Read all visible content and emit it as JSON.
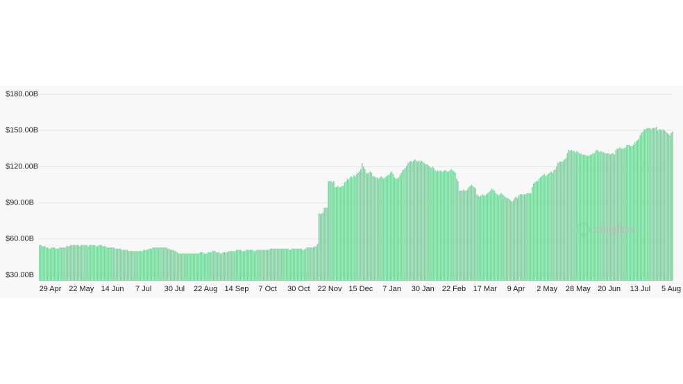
{
  "chart_data": {
    "type": "bar",
    "watermark": "coinglass",
    "color": "#7dd9a1",
    "grid": true,
    "ylim": [
      25.4,
      186.3
    ],
    "yticks": [
      {
        "value": 30,
        "label": "$30.00B"
      },
      {
        "value": 60,
        "label": "$60.00B"
      },
      {
        "value": 90,
        "label": "$90.00B"
      },
      {
        "value": 120,
        "label": "$120.00B"
      },
      {
        "value": 150,
        "label": "$150.00B"
      },
      {
        "value": 180,
        "label": "$180.00B"
      }
    ],
    "categories": [
      null,
      null,
      null,
      null,
      null,
      null,
      null,
      null,
      "29 Apr",
      null,
      null,
      null,
      null,
      null,
      null,
      null,
      null,
      null,
      null,
      null,
      null,
      null,
      null,
      null,
      null,
      null,
      null,
      null,
      null,
      null,
      null,
      "22 May",
      null,
      null,
      null,
      null,
      null,
      null,
      null,
      null,
      null,
      null,
      null,
      null,
      null,
      null,
      null,
      null,
      null,
      null,
      null,
      null,
      null,
      null,
      "14 Jun",
      null,
      null,
      null,
      null,
      null,
      null,
      null,
      null,
      null,
      null,
      null,
      null,
      null,
      null,
      null,
      null,
      null,
      null,
      null,
      null,
      null,
      null,
      "7 Jul",
      null,
      null,
      null,
      null,
      null,
      null,
      null,
      null,
      null,
      null,
      null,
      null,
      null,
      null,
      null,
      null,
      null,
      null,
      null,
      null,
      null,
      null,
      "30 Jul",
      null,
      null,
      null,
      null,
      null,
      null,
      null,
      null,
      null,
      null,
      null,
      null,
      null,
      null,
      null,
      null,
      null,
      null,
      null,
      null,
      null,
      null,
      "22 Aug",
      null,
      null,
      null,
      null,
      null,
      null,
      null,
      null,
      null,
      null,
      null,
      null,
      null,
      null,
      null,
      null,
      null,
      null,
      null,
      null,
      null,
      null,
      "14 Sep",
      null,
      null,
      null,
      null,
      null,
      null,
      null,
      null,
      null,
      null,
      null,
      null,
      null,
      null,
      null,
      null,
      null,
      null,
      null,
      null,
      null,
      null,
      "7 Oct",
      null,
      null,
      null,
      null,
      null,
      null,
      null,
      null,
      null,
      null,
      null,
      null,
      null,
      null,
      null,
      null,
      null,
      null,
      null,
      null,
      null,
      null,
      "30 Oct",
      null,
      null,
      null,
      null,
      null,
      null,
      null,
      null,
      null,
      null,
      null,
      null,
      null,
      null,
      null,
      null,
      null,
      null,
      null,
      null,
      null,
      null,
      "22 Nov",
      null,
      null,
      null,
      null,
      null,
      null,
      null,
      null,
      null,
      null,
      null,
      null,
      null,
      null,
      null,
      null,
      null,
      null,
      null,
      null,
      null,
      null,
      "15 Dec",
      null,
      null,
      null,
      null,
      null,
      null,
      null,
      null,
      null,
      null,
      null,
      null,
      null,
      null,
      null,
      null,
      null,
      null,
      null,
      null,
      null,
      null,
      "7 Jan",
      null,
      null,
      null,
      null,
      null,
      null,
      null,
      null,
      null,
      null,
      null,
      null,
      null,
      null,
      null,
      null,
      null,
      null,
      null,
      null,
      null,
      null,
      "30 Jan",
      null,
      null,
      null,
      null,
      null,
      null,
      null,
      null,
      null,
      null,
      null,
      null,
      null,
      null,
      null,
      null,
      null,
      null,
      null,
      null,
      null,
      null,
      "22 Feb",
      null,
      null,
      null,
      null,
      null,
      null,
      null,
      null,
      null,
      null,
      null,
      null,
      null,
      null,
      null,
      null,
      null,
      null,
      null,
      null,
      null,
      null,
      "17 Mar",
      null,
      null,
      null,
      null,
      null,
      null,
      null,
      null,
      null,
      null,
      null,
      null,
      null,
      null,
      null,
      null,
      null,
      null,
      null,
      null,
      null,
      null,
      "9 Apr",
      null,
      null,
      null,
      null,
      null,
      null,
      null,
      null,
      null,
      null,
      null,
      null,
      null,
      null,
      null,
      null,
      null,
      null,
      null,
      null,
      null,
      null,
      "2 May",
      null,
      null,
      null,
      null,
      null,
      null,
      null,
      null,
      null,
      null,
      null,
      null,
      null,
      null,
      null,
      null,
      null,
      null,
      null,
      null,
      null,
      null,
      "28 May",
      null,
      null,
      null,
      null,
      null,
      null,
      null,
      null,
      null,
      null,
      null,
      null,
      null,
      null,
      null,
      null,
      null,
      null,
      null,
      null,
      null,
      null,
      "20 Jun",
      null,
      null,
      null,
      null,
      null,
      null,
      null,
      null,
      null,
      null,
      null,
      null,
      null,
      null,
      null,
      null,
      null,
      null,
      null,
      null,
      null,
      null,
      "13 Jul",
      null,
      null,
      null,
      null,
      null,
      null,
      null,
      null,
      null,
      null,
      null,
      null,
      null,
      null,
      null,
      null,
      null,
      null,
      null,
      null,
      null,
      null,
      "5 Aug",
      null
    ],
    "values": [
      55,
      55,
      54,
      54,
      54,
      53,
      53,
      52,
      52,
      53,
      53,
      53,
      52,
      52,
      52,
      53,
      53,
      53,
      53,
      53,
      54,
      54,
      54,
      55,
      55,
      55,
      55,
      55,
      55,
      55,
      54,
      55,
      55,
      55,
      55,
      55,
      54,
      55,
      55,
      55,
      55,
      55,
      54,
      54,
      55,
      55,
      55,
      54,
      54,
      54,
      53,
      53,
      53,
      53,
      53,
      53,
      52,
      52,
      52,
      52,
      52,
      51,
      51,
      51,
      51,
      51,
      50,
      50,
      50,
      50,
      50,
      50,
      50,
      50,
      50,
      50,
      50,
      51,
      51,
      51,
      51,
      52,
      52,
      52,
      53,
      53,
      53,
      53,
      53,
      53,
      53,
      53,
      53,
      53,
      53,
      52,
      52,
      51,
      51,
      51,
      50,
      50,
      49,
      48,
      48,
      48,
      48,
      48,
      48,
      48,
      48,
      48,
      48,
      48,
      48,
      48,
      48,
      48,
      48,
      49,
      49,
      49,
      48,
      48,
      48,
      49,
      49,
      49,
      50,
      50,
      50,
      49,
      49,
      49,
      48,
      48,
      49,
      49,
      49,
      49,
      50,
      50,
      50,
      50,
      50,
      50,
      51,
      51,
      51,
      51,
      50,
      50,
      50,
      51,
      51,
      51,
      51,
      51,
      51,
      50,
      50,
      51,
      51,
      51,
      51,
      51,
      51,
      51,
      51,
      51,
      51,
      52,
      52,
      52,
      52,
      52,
      52,
      52,
      52,
      52,
      52,
      52,
      52,
      52,
      52,
      51,
      51,
      52,
      52,
      52,
      52,
      52,
      52,
      52,
      52,
      51,
      51,
      52,
      53,
      53,
      53,
      53,
      53,
      53,
      54,
      54,
      56,
      81,
      81,
      81,
      82,
      86,
      86,
      86,
      108,
      108,
      108,
      107,
      108,
      103,
      103,
      104,
      103,
      103,
      104,
      104,
      107,
      108,
      110,
      109,
      111,
      112,
      111,
      113,
      112,
      114,
      115,
      116,
      118,
      123,
      120,
      118,
      115,
      114,
      115,
      116,
      115,
      112,
      112,
      111,
      111,
      110,
      111,
      112,
      111,
      110,
      111,
      112,
      113,
      113,
      115,
      116,
      114,
      111,
      110,
      110,
      111,
      113,
      115,
      117,
      118,
      119,
      121,
      123,
      124,
      125,
      124,
      125,
      126,
      125,
      124,
      125,
      124,
      125,
      124,
      123,
      122,
      122,
      121,
      120,
      119,
      120,
      119,
      117,
      116,
      117,
      116,
      117,
      116,
      116,
      117,
      117,
      116,
      116,
      117,
      118,
      117,
      116,
      115,
      110,
      108,
      100,
      100,
      100,
      101,
      100,
      100,
      101,
      103,
      104,
      105,
      104,
      103,
      102,
      97,
      96,
      95,
      96,
      97,
      96,
      96,
      97,
      98,
      99,
      100,
      102,
      101,
      100,
      98,
      97,
      96,
      97,
      98,
      97,
      96,
      95,
      94,
      94,
      93,
      92,
      91,
      92,
      94,
      95,
      94,
      96,
      97,
      97,
      97,
      97,
      97,
      98,
      98,
      98,
      98,
      103,
      106,
      107,
      108,
      108,
      110,
      111,
      112,
      113,
      114,
      112,
      113,
      114,
      115,
      116,
      115,
      117,
      118,
      120,
      123,
      124,
      124,
      124,
      125,
      126,
      127,
      131,
      134,
      133,
      134,
      133,
      133,
      132,
      133,
      132,
      131,
      131,
      130,
      130,
      130,
      129,
      129,
      129,
      130,
      130,
      131,
      131,
      133,
      134,
      133,
      132,
      133,
      132,
      132,
      131,
      131,
      131,
      131,
      130,
      131,
      131,
      130,
      134,
      135,
      135,
      136,
      135,
      135,
      135,
      136,
      138,
      138,
      138,
      137,
      137,
      138,
      140,
      141,
      142,
      143,
      146,
      148,
      149,
      151,
      151,
      152,
      152,
      152,
      151,
      152,
      152,
      152,
      153,
      150,
      151,
      151,
      150,
      151,
      150,
      149,
      148,
      147,
      146,
      148,
      149
    ]
  }
}
